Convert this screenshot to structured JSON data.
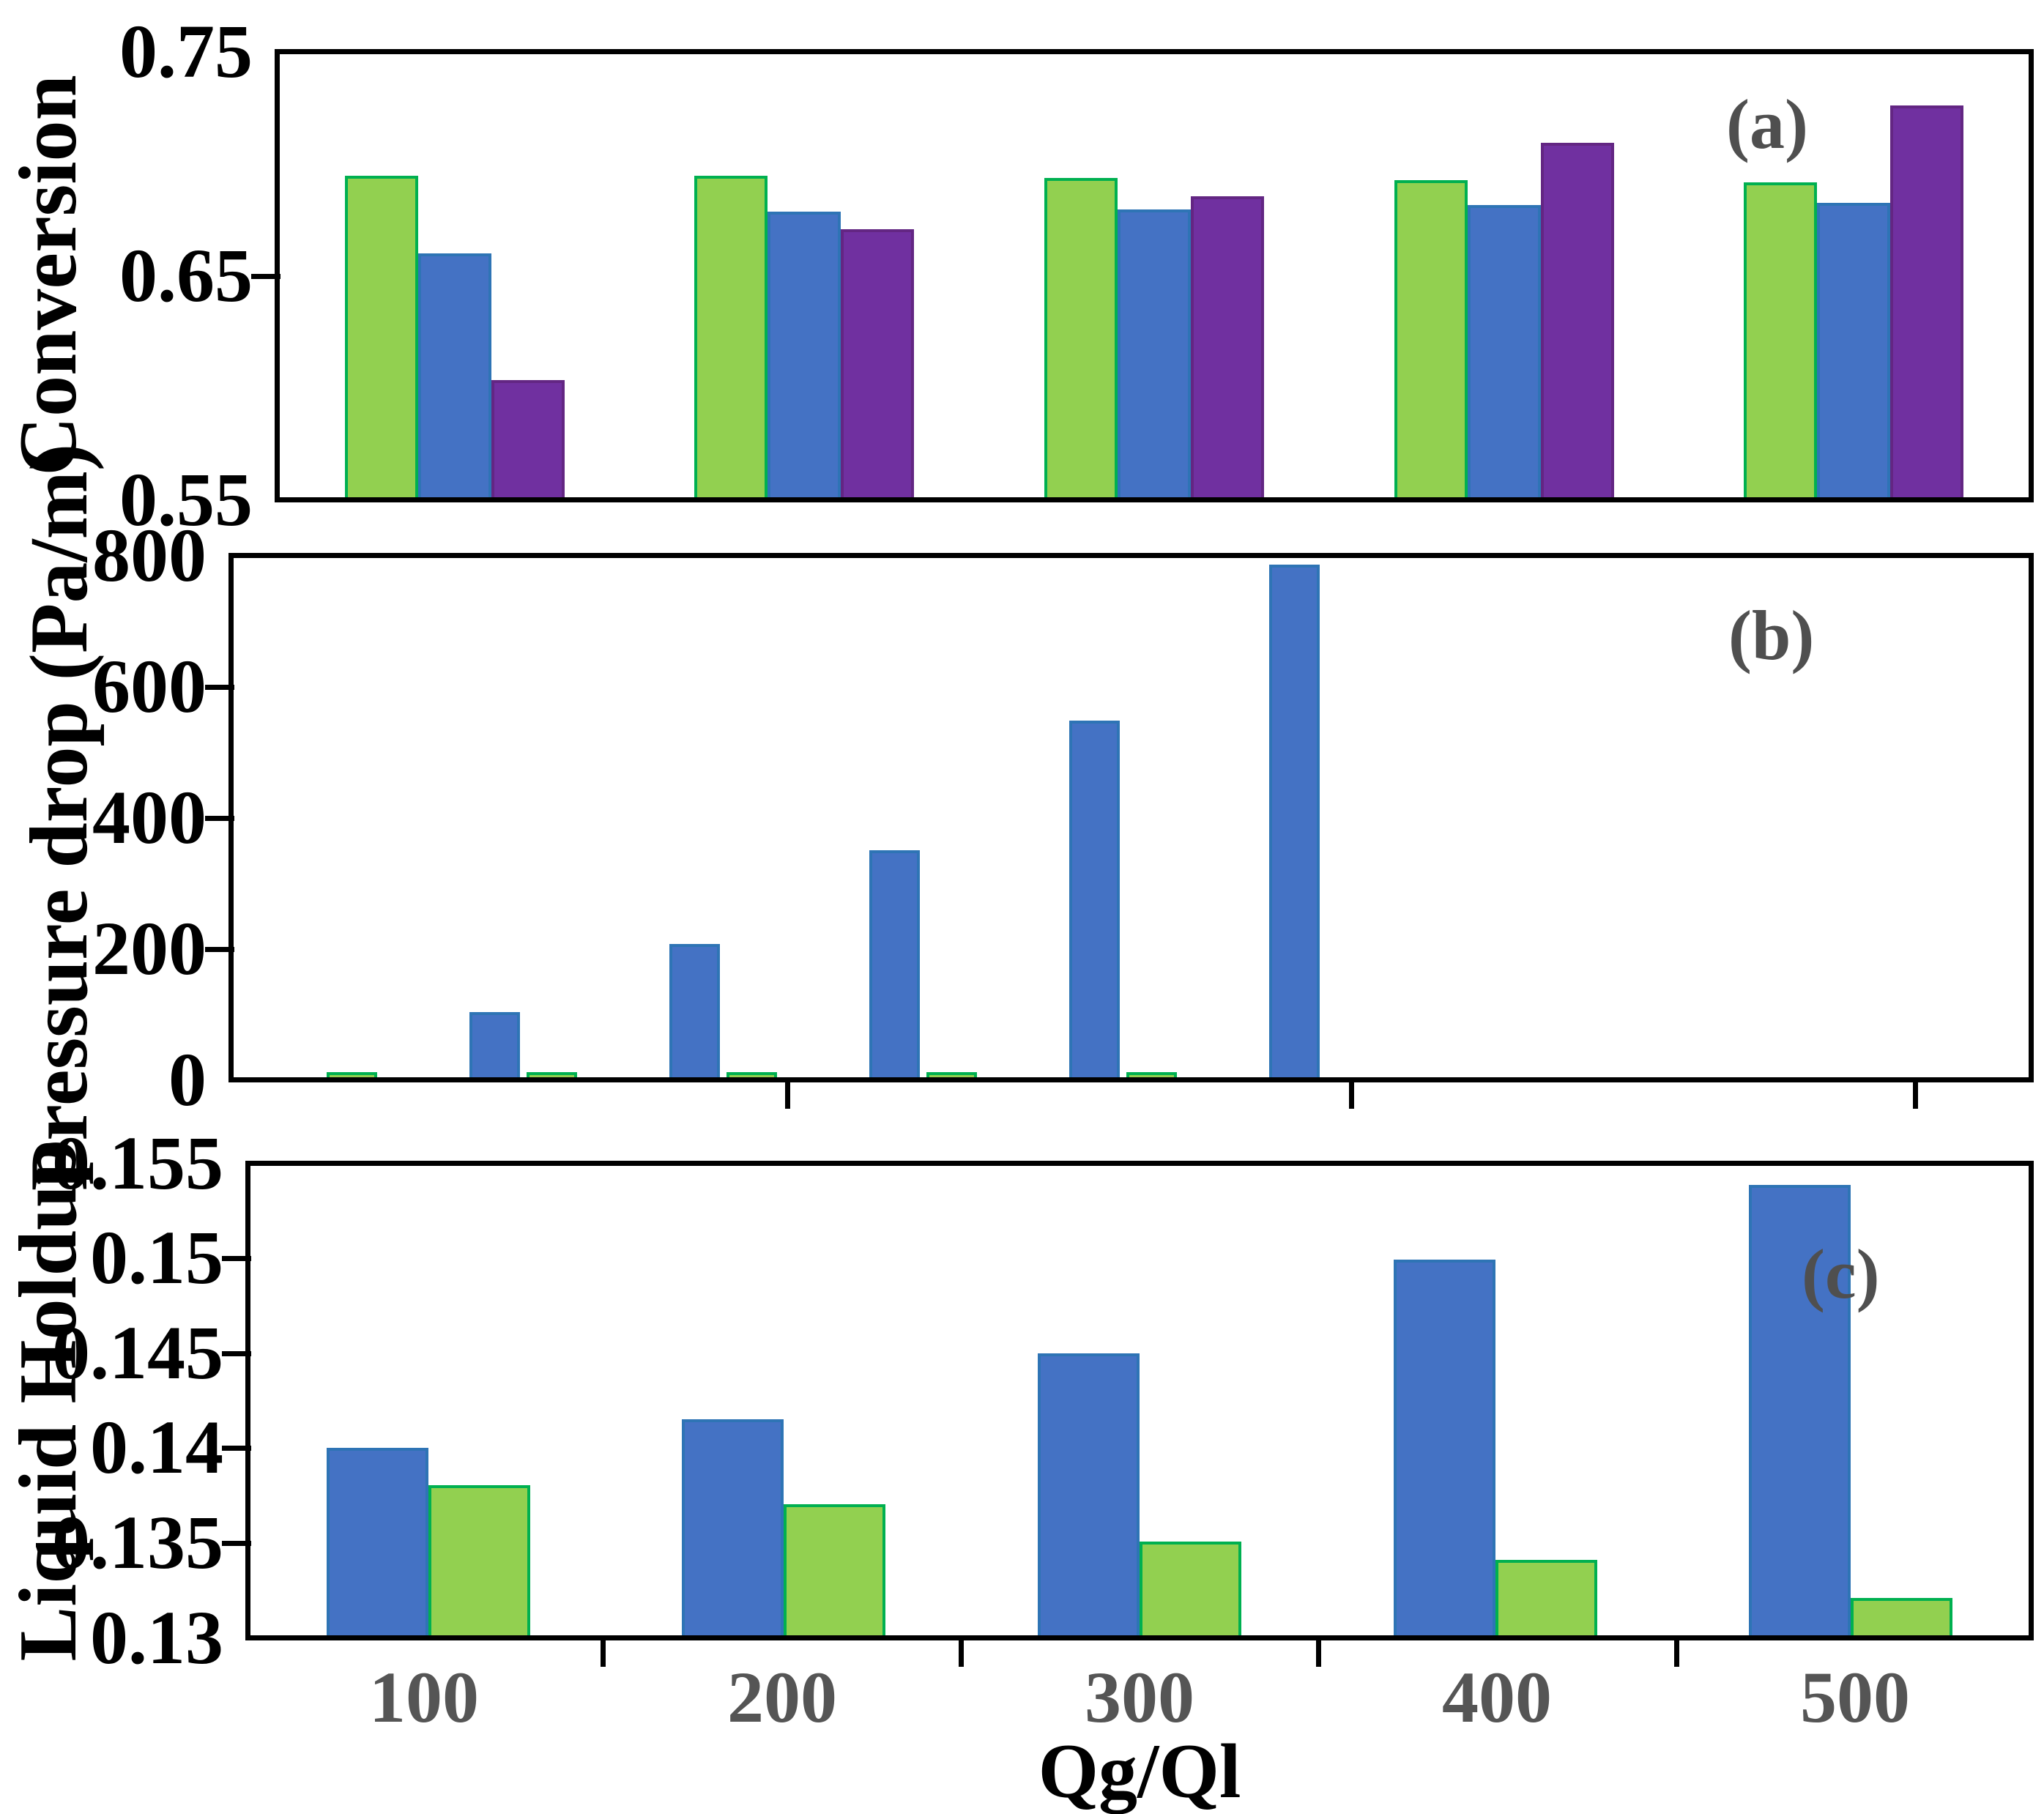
{
  "figure": {
    "xaxis": {
      "title": "Qg/Ql",
      "labels": [
        "100",
        "200",
        "300",
        "400",
        "500"
      ]
    },
    "colors": {
      "green_fill": "#92D050",
      "green_border": "#00B050",
      "blue_fill": "#4472C4",
      "blue_border": "#2E74B5",
      "purple_fill": "#7030A0",
      "purple_border": "#632683",
      "panel_letter_gray": "#4F4F4F",
      "x_number_gray": "#555555",
      "axis_black": "#000000"
    }
  },
  "chart_data": [
    {
      "type": "bar",
      "panel_label": "(a)",
      "ylabel": "Conversion",
      "xlabel": "Qg/Ql",
      "categories": [
        100,
        200,
        300,
        400,
        500
      ],
      "ylim": [
        0.55,
        0.75
      ],
      "ytick_values": [
        0.75,
        0.65,
        0.55
      ],
      "ytick_labels": [
        "0.75",
        "0.65",
        "0.55"
      ],
      "grid": false,
      "legend": "none",
      "series": [
        {
          "name": "series-green",
          "color": "green",
          "values": [
            0.695,
            0.695,
            0.694,
            0.693,
            0.692
          ]
        },
        {
          "name": "series-blue",
          "color": "blue",
          "values": [
            0.66,
            0.679,
            0.68,
            0.682,
            0.683
          ]
        },
        {
          "name": "series-purple",
          "color": "purple",
          "values": [
            0.603,
            0.671,
            0.686,
            0.71,
            0.727
          ]
        }
      ]
    },
    {
      "type": "bar",
      "panel_label": "(b)",
      "ylabel": "Pressure drop (Pa/m)",
      "xlabel": "Qg/Ql",
      "categories": [
        100,
        200,
        300,
        400,
        500
      ],
      "ylim": [
        0,
        800
      ],
      "ytick_values": [
        800,
        600,
        400,
        200,
        0
      ],
      "ytick_labels": [
        "800",
        "600",
        "400",
        "200",
        "0"
      ],
      "grid": false,
      "legend": "none",
      "series": [
        {
          "name": "series-green",
          "color": "green",
          "values": [
            8,
            8,
            8,
            8,
            8
          ]
        },
        {
          "name": "series-blue",
          "color": "blue",
          "values": [
            100,
            205,
            350,
            550,
            790
          ]
        }
      ]
    },
    {
      "type": "bar",
      "panel_label": "(c)",
      "ylabel": "Liquid Holdup",
      "xlabel": "Qg/Ql",
      "categories": [
        100,
        200,
        300,
        400,
        500
      ],
      "ylim": [
        0.13,
        0.155
      ],
      "ytick_values": [
        0.155,
        0.15,
        0.145,
        0.14,
        0.135,
        0.13
      ],
      "ytick_labels": [
        "0.155",
        "0.15",
        "0.145",
        "0.14",
        "0.135",
        "0.13"
      ],
      "grid": false,
      "legend": "none",
      "series": [
        {
          "name": "series-blue",
          "color": "blue",
          "values": [
            0.14,
            0.1415,
            0.145,
            0.15,
            0.154
          ]
        },
        {
          "name": "series-green",
          "color": "green",
          "values": [
            0.138,
            0.137,
            0.135,
            0.134,
            0.132
          ]
        }
      ]
    }
  ]
}
